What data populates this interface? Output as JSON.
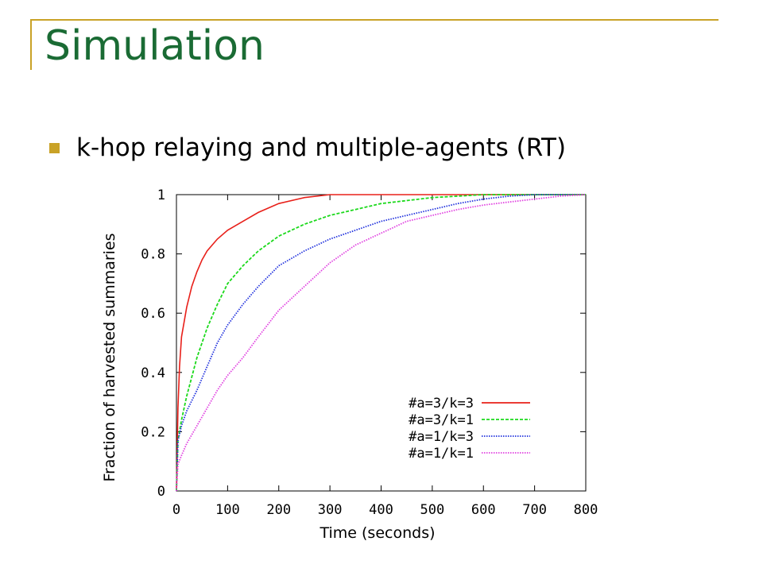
{
  "slide": {
    "title": "Simulation",
    "bullet": "k-hop relaying and multiple-agents (RT)",
    "colors": {
      "title": "#1a6b34",
      "accent": "#c9a227",
      "bullet": "#c9a227"
    }
  },
  "chart_data": {
    "type": "line",
    "title": "",
    "xlabel": "Time (seconds)",
    "ylabel": "Fraction of harvested summaries",
    "xlim": [
      0,
      800
    ],
    "ylim": [
      0,
      1
    ],
    "xticks": [
      "0",
      "100",
      "200",
      "300",
      "400",
      "500",
      "600",
      "700",
      "800"
    ],
    "yticks": [
      "0",
      "0.2",
      "0.4",
      "0.6",
      "0.8",
      "1"
    ],
    "grid": false,
    "legend_position": "bottom-right",
    "series": [
      {
        "name": "#a=3/k=3",
        "color": "#e8201a",
        "dash": "solid",
        "x": [
          0,
          3,
          6,
          10,
          20,
          30,
          40,
          50,
          60,
          80,
          100,
          130,
          160,
          200,
          250,
          300,
          800
        ],
        "y": [
          0,
          0.28,
          0.42,
          0.52,
          0.62,
          0.69,
          0.74,
          0.78,
          0.81,
          0.85,
          0.88,
          0.91,
          0.94,
          0.97,
          0.99,
          1.0,
          1.0
        ]
      },
      {
        "name": "#a=3/k=1",
        "color": "#1cd91c",
        "dash": "dashed",
        "x": [
          0,
          3,
          10,
          20,
          40,
          60,
          80,
          100,
          130,
          160,
          200,
          250,
          300,
          350,
          400,
          450,
          500,
          550,
          600,
          800
        ],
        "y": [
          0,
          0.17,
          0.24,
          0.32,
          0.45,
          0.55,
          0.63,
          0.7,
          0.76,
          0.81,
          0.86,
          0.9,
          0.93,
          0.95,
          0.97,
          0.98,
          0.99,
          0.995,
          1.0,
          1.0
        ]
      },
      {
        "name": "#a=1/k=3",
        "color": "#2233dd",
        "dash": "dotted",
        "x": [
          0,
          3,
          10,
          20,
          40,
          60,
          80,
          100,
          130,
          160,
          200,
          250,
          300,
          350,
          400,
          450,
          500,
          550,
          600,
          650,
          700,
          800
        ],
        "y": [
          0,
          0.17,
          0.22,
          0.27,
          0.34,
          0.42,
          0.5,
          0.56,
          0.63,
          0.69,
          0.76,
          0.81,
          0.85,
          0.88,
          0.91,
          0.93,
          0.95,
          0.97,
          0.985,
          0.995,
          1.0,
          1.0
        ]
      },
      {
        "name": "#a=1/k=1",
        "color": "#e040e0",
        "dash": "dotted",
        "x": [
          0,
          3,
          10,
          20,
          40,
          60,
          80,
          100,
          130,
          160,
          200,
          250,
          300,
          350,
          400,
          450,
          500,
          550,
          600,
          650,
          700,
          750,
          800
        ],
        "y": [
          0,
          0.09,
          0.12,
          0.16,
          0.22,
          0.28,
          0.34,
          0.39,
          0.45,
          0.52,
          0.61,
          0.69,
          0.77,
          0.83,
          0.87,
          0.91,
          0.93,
          0.95,
          0.965,
          0.975,
          0.985,
          0.995,
          1.0
        ]
      }
    ]
  }
}
